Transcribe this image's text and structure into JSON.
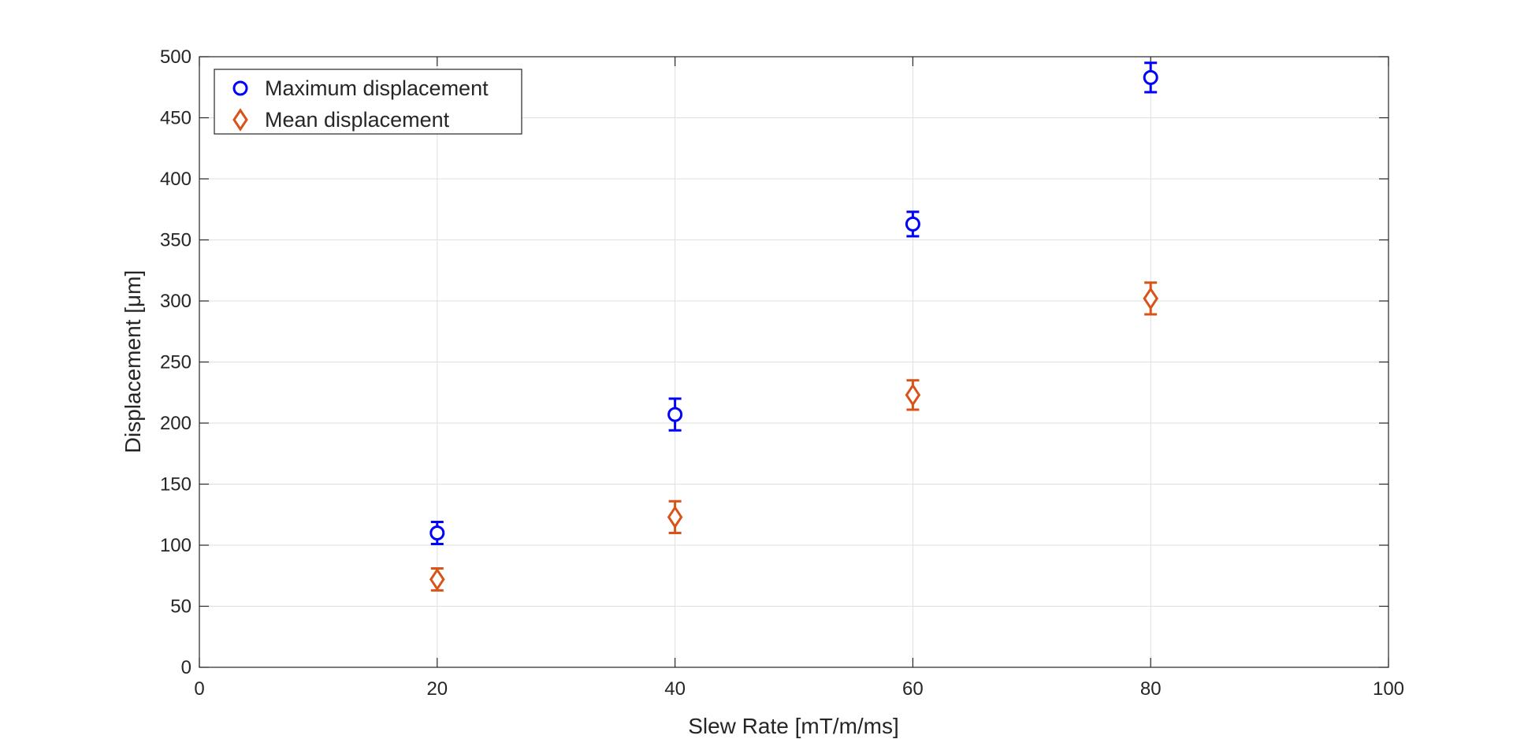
{
  "chart_data": {
    "type": "scatter",
    "title": "",
    "xlabel": "Slew Rate [mT/m/ms]",
    "ylabel": "Displacement [μm]",
    "xlim": [
      0,
      100
    ],
    "ylim": [
      0,
      500
    ],
    "x_ticks": [
      0,
      20,
      40,
      60,
      80,
      100
    ],
    "y_ticks": [
      0,
      50,
      100,
      150,
      200,
      250,
      300,
      350,
      400,
      450,
      500
    ],
    "grid": true,
    "box": true,
    "legend_position": "top-left",
    "series": [
      {
        "name": "Maximum displacement",
        "marker": "circle",
        "color": "#0000ff",
        "x": [
          20,
          40,
          60,
          80
        ],
        "y": [
          110,
          207,
          363,
          483
        ],
        "err": [
          9,
          13,
          10,
          12
        ]
      },
      {
        "name": "Mean displacement",
        "marker": "diamond",
        "color": "#d95319",
        "x": [
          20,
          40,
          60,
          80
        ],
        "y": [
          72,
          123,
          223,
          302
        ],
        "err": [
          9,
          13,
          12,
          13
        ]
      }
    ]
  }
}
